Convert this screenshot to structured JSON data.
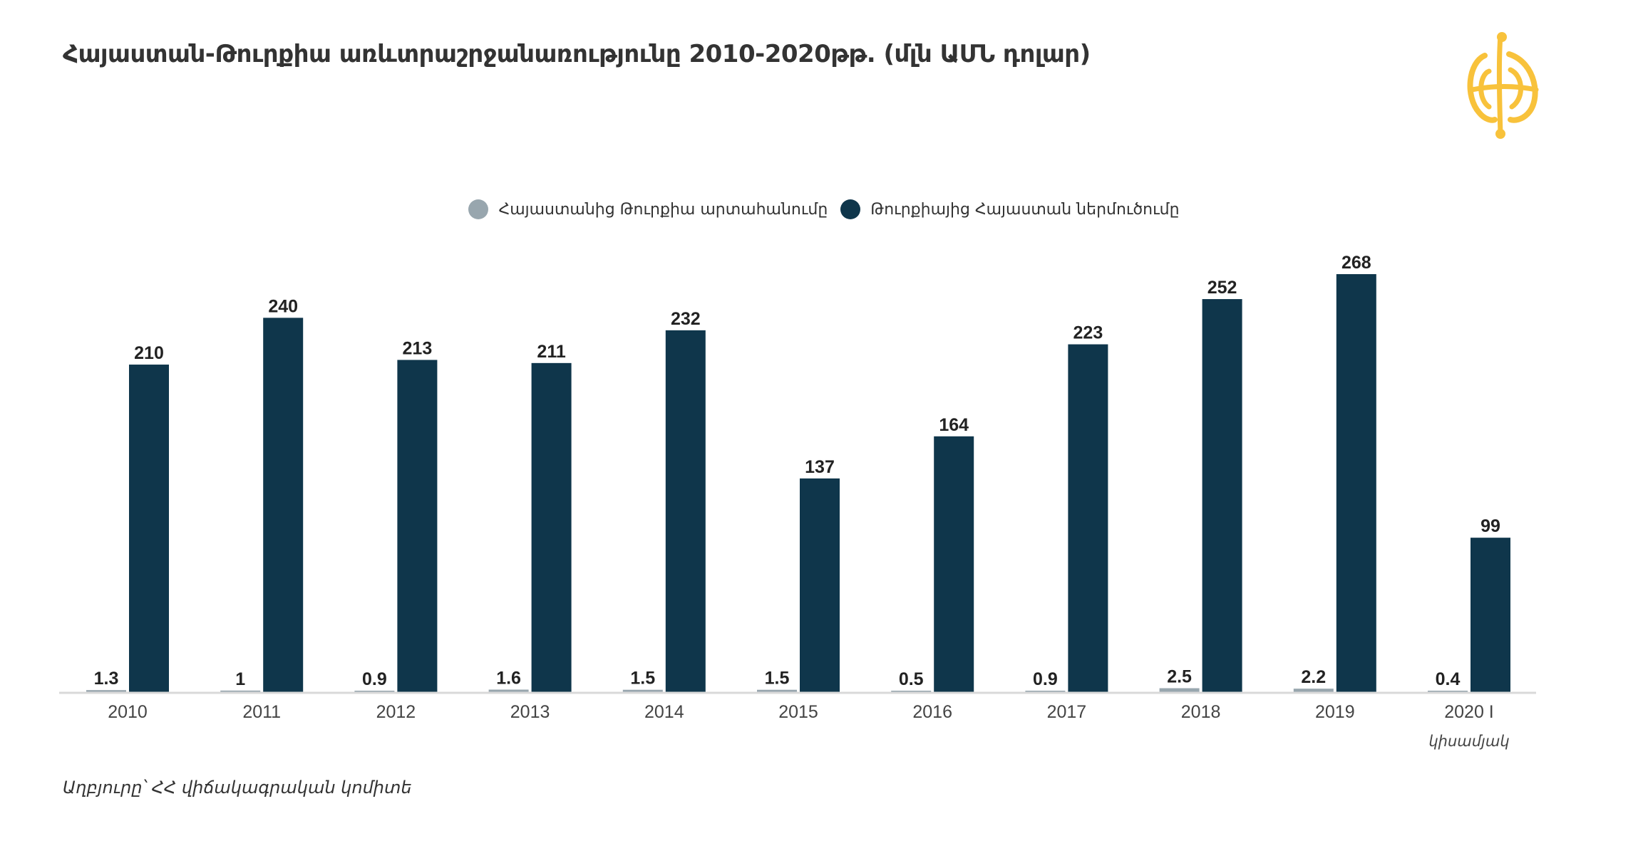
{
  "title": "Հայաստան-Թուրքիա առևտրաշրջանառությունը 2010-2020թթ. (մլն ԱՄՆ դոլար)",
  "source": "Աղբյուրը՝ ՀՀ վիճակագրական կոմիտե",
  "logo": "golden globe emblem",
  "colors": {
    "export": "#98a6ae",
    "import": "#0f364b",
    "logo": "#f8c23b",
    "axis": "#d9d9d9"
  },
  "chart_data": {
    "type": "bar",
    "title": "Հայաստան-Թուրքիա առևտրաշրջանառությունը 2010-2020թթ. (մլն ԱՄՆ դոլար)",
    "categories": [
      "2010",
      "2011",
      "2012",
      "2013",
      "2014",
      "2015",
      "2016",
      "2017",
      "2018",
      "2019",
      "2020 I կիսամյակ"
    ],
    "category_lines": [
      [
        "2010"
      ],
      [
        "2011"
      ],
      [
        "2012"
      ],
      [
        "2013"
      ],
      [
        "2014"
      ],
      [
        "2015"
      ],
      [
        "2016"
      ],
      [
        "2017"
      ],
      [
        "2018"
      ],
      [
        "2019"
      ],
      [
        "2020 I",
        "կիսամյակ"
      ]
    ],
    "series": [
      {
        "name": "Հայաստանից Թուրքիա արտահանումը",
        "values": [
          1.3,
          1,
          0.9,
          1.6,
          1.5,
          1.5,
          0.5,
          0.9,
          2.5,
          2.2,
          0.4
        ],
        "labels": [
          "1.3",
          "1",
          "0.9",
          "1.6",
          "1.5",
          "1.5",
          "0.5",
          "0.9",
          "2.5",
          "2.2",
          "0.4"
        ]
      },
      {
        "name": "Թուրքիայից Հայաստան ներմուծումը",
        "values": [
          210,
          240,
          213,
          211,
          232,
          137,
          164,
          223,
          252,
          268,
          99
        ],
        "labels": [
          "210",
          "240",
          "213",
          "211",
          "232",
          "137",
          "164",
          "223",
          "252",
          "268",
          "99"
        ]
      }
    ],
    "xlabel": "",
    "ylabel": "",
    "ylim": [
      0,
      268
    ],
    "grid": false,
    "legend": "top-center"
  }
}
